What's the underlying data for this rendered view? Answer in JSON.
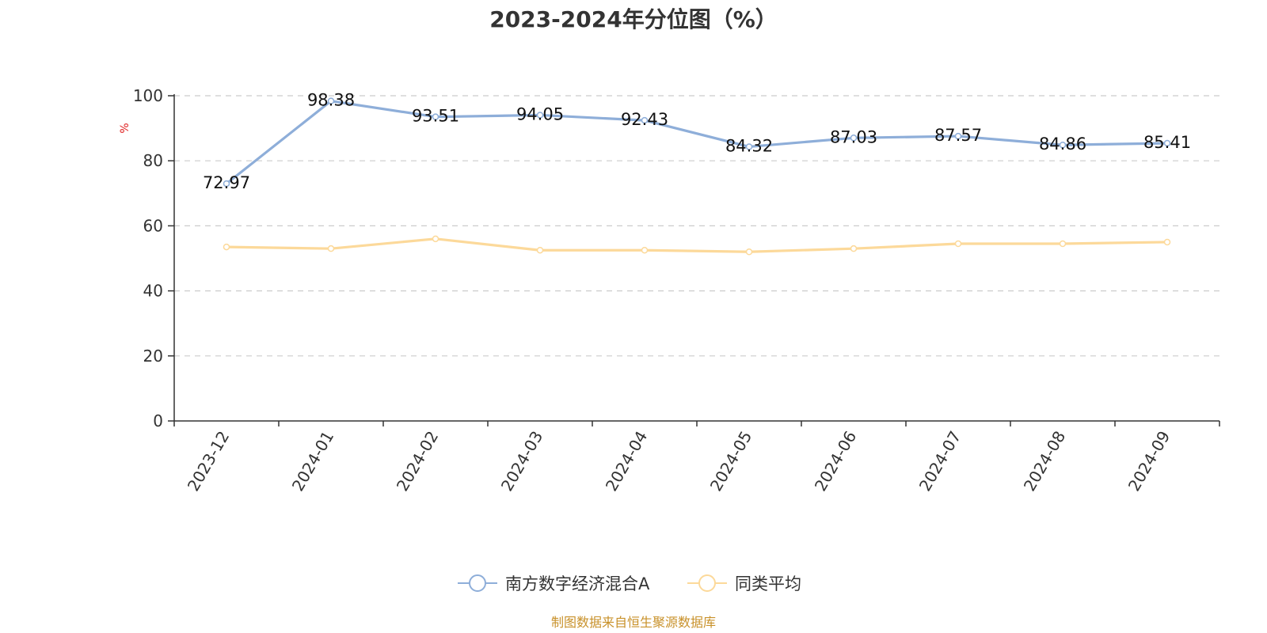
{
  "chart_data": {
    "type": "line",
    "title": "2023-2024年分位图（%）",
    "ylabel": "%",
    "xlabel": "",
    "ylim": [
      0,
      100
    ],
    "yticks": [
      0,
      20,
      40,
      60,
      80,
      100
    ],
    "grid": true,
    "legend_position": "bottom",
    "categories": [
      "2023-12",
      "2024-01",
      "2024-02",
      "2024-03",
      "2024-04",
      "2024-05",
      "2024-06",
      "2024-07",
      "2024-08",
      "2024-09"
    ],
    "series": [
      {
        "name": "南方数字经济混合A",
        "color": "#8eaed9",
        "show_labels": true,
        "values": [
          72.97,
          98.38,
          93.51,
          94.05,
          92.43,
          84.32,
          87.03,
          87.57,
          84.86,
          85.41
        ]
      },
      {
        "name": "同类平均",
        "color": "#fcd99a",
        "show_labels": false,
        "values": [
          53.5,
          53.0,
          56.0,
          52.5,
          52.5,
          52.0,
          53.0,
          54.5,
          54.5,
          55.0
        ]
      }
    ]
  },
  "source_text": "制图数据来自恒生聚源数据库"
}
